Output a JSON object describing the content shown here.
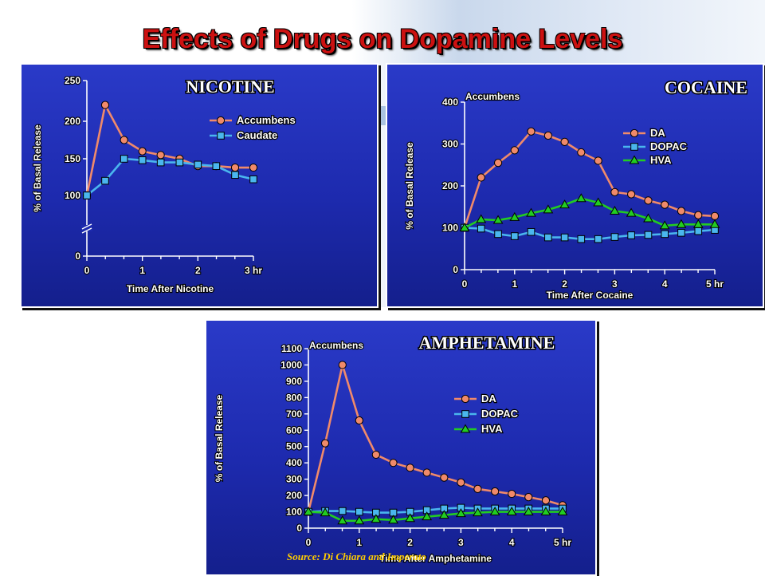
{
  "title": "Effects of Drugs on Dopamine Levels",
  "source": "Source: Di Chiara and Imperato",
  "colors": {
    "da": "#f08a6a",
    "dopac": "#4ab6ee",
    "hva": "#22cc22",
    "panel": "#1d2aae",
    "title": "#cc1111"
  },
  "chart_data": [
    {
      "id": "nicotine",
      "type": "line",
      "title": "NICOTINE",
      "subtitle": "",
      "xlabel": "Time After Nicotine",
      "ylabel": "% of Basal Release",
      "x_ticks": [
        "0",
        "1",
        "2",
        "3 hr"
      ],
      "y_ticks": [
        "0",
        "100",
        "150",
        "200",
        "250"
      ],
      "x_range": [
        0,
        3
      ],
      "y_range": [
        0,
        250
      ],
      "y_axis_break": true,
      "grid": false,
      "legend_position": "top-right",
      "series": [
        {
          "name": "Accumbens",
          "marker": "circle",
          "color": "#f08a6a",
          "x": [
            0,
            0.33,
            0.67,
            1.0,
            1.33,
            1.67,
            2.0,
            2.33,
            2.67,
            3.0
          ],
          "y": [
            100,
            220,
            175,
            160,
            155,
            150,
            140,
            140,
            138,
            138
          ]
        },
        {
          "name": "Caudate",
          "marker": "square",
          "color": "#4ab6ee",
          "x": [
            0,
            0.33,
            0.67,
            1.0,
            1.33,
            1.67,
            2.0,
            2.33,
            2.67,
            3.0
          ],
          "y": [
            100,
            120,
            150,
            148,
            145,
            145,
            142,
            140,
            128,
            122
          ]
        }
      ]
    },
    {
      "id": "cocaine",
      "type": "line",
      "title": "COCAINE",
      "subtitle": "Accumbens",
      "xlabel": "Time After Cocaine",
      "ylabel": "% of Basal Release",
      "x_ticks": [
        "0",
        "1",
        "2",
        "3",
        "4",
        "5 hr"
      ],
      "y_ticks": [
        "0",
        "100",
        "200",
        "300",
        "400"
      ],
      "x_range": [
        0,
        5
      ],
      "y_range": [
        0,
        400
      ],
      "grid": false,
      "legend_position": "top-right",
      "series": [
        {
          "name": "DA",
          "marker": "circle",
          "color": "#f08a6a",
          "x": [
            0,
            0.33,
            0.67,
            1.0,
            1.33,
            1.67,
            2.0,
            2.33,
            2.67,
            3.0,
            3.33,
            3.67,
            4.0,
            4.33,
            4.67,
            5.0
          ],
          "y": [
            100,
            220,
            255,
            285,
            330,
            320,
            305,
            280,
            260,
            185,
            180,
            165,
            155,
            140,
            130,
            128
          ]
        },
        {
          "name": "DOPAC",
          "marker": "square",
          "color": "#4ab6ee",
          "x": [
            0,
            0.33,
            0.67,
            1.0,
            1.33,
            1.67,
            2.0,
            2.33,
            2.67,
            3.0,
            3.33,
            3.67,
            4.0,
            4.33,
            4.67,
            5.0
          ],
          "y": [
            100,
            98,
            85,
            80,
            90,
            77,
            77,
            73,
            73,
            78,
            82,
            83,
            85,
            88,
            92,
            95
          ]
        },
        {
          "name": "HVA",
          "marker": "triangle",
          "color": "#22cc22",
          "x": [
            0,
            0.33,
            0.67,
            1.0,
            1.33,
            1.67,
            2.0,
            2.33,
            2.67,
            3.0,
            3.33,
            3.67,
            4.0,
            4.33,
            4.67,
            5.0
          ],
          "y": [
            100,
            120,
            118,
            125,
            135,
            143,
            155,
            170,
            160,
            140,
            135,
            122,
            105,
            108,
            108,
            108
          ]
        }
      ]
    },
    {
      "id": "amphetamine",
      "type": "line",
      "title": "AMPHETAMINE",
      "subtitle": "Accumbens",
      "xlabel": "Time After Amphetamine",
      "ylabel": "% of Basal Release",
      "x_ticks": [
        "0",
        "1",
        "2",
        "3",
        "4",
        "5 hr"
      ],
      "y_ticks": [
        "0",
        "100",
        "200",
        "300",
        "400",
        "500",
        "600",
        "700",
        "800",
        "900",
        "1000",
        "1100"
      ],
      "x_range": [
        0,
        5
      ],
      "y_range": [
        0,
        1100
      ],
      "grid": false,
      "legend_position": "right",
      "series": [
        {
          "name": "DA",
          "marker": "circle",
          "color": "#f08a6a",
          "x": [
            0,
            0.33,
            0.67,
            1.0,
            1.33,
            1.67,
            2.0,
            2.33,
            2.67,
            3.0,
            3.33,
            3.67,
            4.0,
            4.33,
            4.67,
            5.0
          ],
          "y": [
            100,
            520,
            1000,
            660,
            450,
            400,
            370,
            340,
            310,
            280,
            240,
            225,
            210,
            190,
            170,
            140
          ]
        },
        {
          "name": "DOPAC",
          "marker": "square",
          "color": "#4ab6ee",
          "x": [
            0,
            0.33,
            0.67,
            1.0,
            1.33,
            1.67,
            2.0,
            2.33,
            2.67,
            3.0,
            3.33,
            3.67,
            4.0,
            4.33,
            4.67,
            5.0
          ],
          "y": [
            100,
            105,
            105,
            100,
            95,
            95,
            100,
            110,
            120,
            125,
            120,
            120,
            120,
            120,
            120,
            120
          ]
        },
        {
          "name": "HVA",
          "marker": "triangle",
          "color": "#22cc22",
          "x": [
            0,
            0.33,
            0.67,
            1.0,
            1.33,
            1.67,
            2.0,
            2.33,
            2.67,
            3.0,
            3.33,
            3.67,
            4.0,
            4.33,
            4.67,
            5.0
          ],
          "y": [
            100,
            95,
            45,
            45,
            55,
            50,
            60,
            70,
            80,
            90,
            95,
            100,
            100,
            100,
            100,
            100
          ]
        }
      ]
    }
  ]
}
